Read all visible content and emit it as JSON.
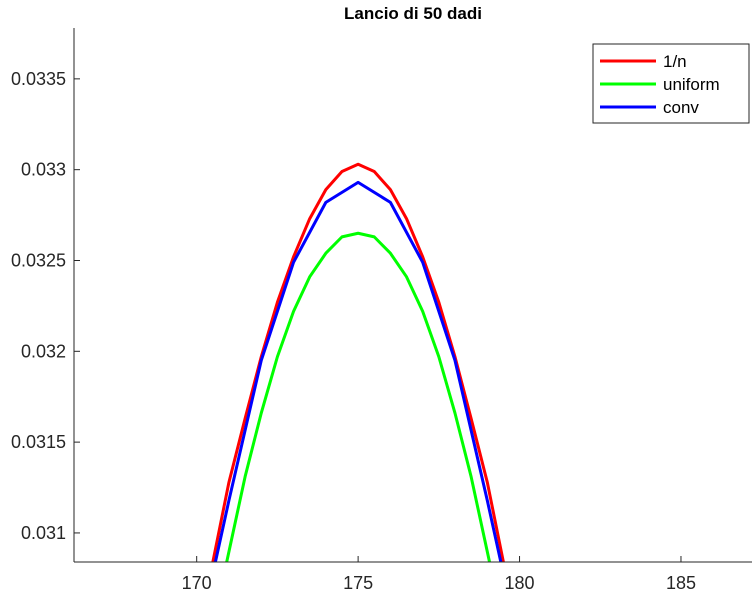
{
  "chart_data": {
    "type": "line",
    "title": "Lancio di 50 dadi",
    "xlabel": "",
    "ylabel": "",
    "xlim": [
      166.2,
      187.2
    ],
    "ylim": [
      0.03084,
      0.03378
    ],
    "x_ticks": [
      170,
      175,
      180,
      185
    ],
    "x_tick_labels": [
      "170",
      "175",
      "180",
      "185"
    ],
    "y_ticks": [
      0.031,
      0.0315,
      0.032,
      0.0325,
      0.033,
      0.0335
    ],
    "y_tick_labels": [
      "0.031",
      "0.0315",
      "0.032",
      "0.0325",
      "0.033",
      "0.0335"
    ],
    "grid": false,
    "legend_position": "top-right",
    "series": [
      {
        "name": "1/n",
        "color": "#ff0000",
        "x": [
          170.5,
          171,
          171.5,
          172,
          172.5,
          173,
          173.5,
          174,
          174.5,
          175,
          175.5,
          176,
          176.5,
          177,
          177.5,
          178,
          178.5,
          179,
          179.5
        ],
        "y": [
          0.03084,
          0.03128,
          0.03163,
          0.03197,
          0.03227,
          0.03252,
          0.03273,
          0.03289,
          0.03299,
          0.03303,
          0.03299,
          0.03289,
          0.03273,
          0.03252,
          0.03227,
          0.03197,
          0.03163,
          0.03128,
          0.03084
        ]
      },
      {
        "name": "uniform",
        "color": "#00ff00",
        "x": [
          170.93,
          171.5,
          172,
          172.5,
          173,
          173.5,
          174,
          174.5,
          175,
          175.5,
          176,
          176.5,
          177,
          177.5,
          178,
          178.5,
          179.07
        ],
        "y": [
          0.03084,
          0.03131,
          0.03166,
          0.03197,
          0.03222,
          0.03241,
          0.03254,
          0.03263,
          0.03265,
          0.03263,
          0.03254,
          0.03241,
          0.03222,
          0.03197,
          0.03166,
          0.03131,
          0.03084
        ]
      },
      {
        "name": "conv",
        "color": "#0000ff",
        "x": [
          170.58,
          171,
          172,
          173,
          174,
          175,
          176,
          177,
          178,
          179,
          179.42
        ],
        "y": [
          0.03084,
          0.03118,
          0.03195,
          0.03249,
          0.03282,
          0.03293,
          0.03282,
          0.03249,
          0.03195,
          0.03118,
          0.03084
        ]
      }
    ]
  }
}
